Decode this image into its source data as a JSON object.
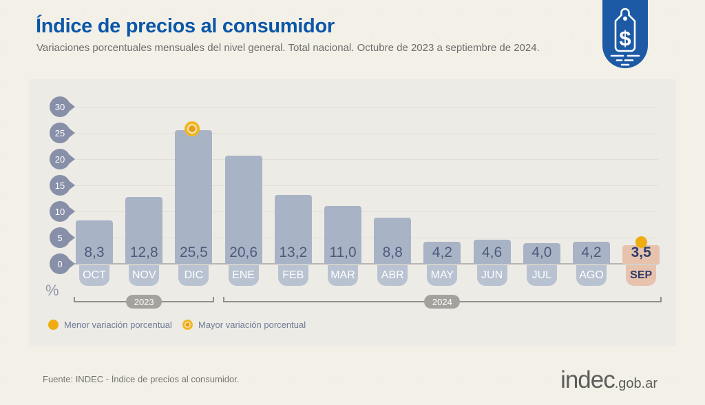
{
  "header": {
    "title": "Índice de precios al consumidor",
    "subtitle": "Variaciones porcentuales mensuales del nivel general. Total nacional. Octubre de 2023 a septiembre de 2024.",
    "badge_dollar": "$"
  },
  "chart_data": {
    "type": "bar",
    "title": "Índice de precios al consumidor",
    "subtitle": "Variaciones porcentuales mensuales del nivel general. Total nacional. Octubre de 2023 a septiembre de 2024.",
    "categories": [
      "OCT",
      "NOV",
      "DIC",
      "ENE",
      "FEB",
      "MAR",
      "ABR",
      "MAY",
      "JUN",
      "JUL",
      "AGO",
      "SEP"
    ],
    "values": [
      8.3,
      12.8,
      25.5,
      20.6,
      13.2,
      11.0,
      8.8,
      4.2,
      4.6,
      4.0,
      4.2,
      3.5
    ],
    "value_labels": [
      "8,3",
      "12,8",
      "25,5",
      "20,6",
      "13,2",
      "11,0",
      "8,8",
      "4,2",
      "4,6",
      "4,0",
      "4,2",
      "3,5"
    ],
    "ylabel": "%",
    "ylim": [
      0,
      30
    ],
    "yticks": [
      0,
      5,
      10,
      15,
      20,
      25,
      30
    ],
    "grid": true,
    "legend_position": "bottom-left",
    "max_marker_category": "DIC",
    "min_marker_category": "SEP",
    "highlight_category": "SEP",
    "year_groups": [
      {
        "label": "2023",
        "from": "OCT",
        "to": "DIC"
      },
      {
        "label": "2024",
        "from": "ENE",
        "to": "SEP"
      }
    ]
  },
  "legend": {
    "items": [
      {
        "icon": "solid-dot",
        "label": "Menor variación porcentual"
      },
      {
        "icon": "ring-dot",
        "label": "Mayor variación porcentual"
      }
    ]
  },
  "footer": {
    "source": "Fuente: INDEC - Índice de precios al consumidor.",
    "logo_main": "indec",
    "logo_suffix": ".gob.ar"
  },
  "colors": {
    "title_blue": "#0b57a8",
    "bar_blue": "#a9b3c6",
    "month_badge_blue": "#b8c2d1",
    "highlight_salmon": "#e7c3ae",
    "value_text": "#4e5a7b",
    "highlight_text": "#2e3e6b",
    "axis_badge": "#8790a8",
    "marker_yellow": "#f0ad10",
    "marker_ring": "#f2b71f",
    "header_badge_blue": "#1d5aa5",
    "page_background": "#f3f0e8",
    "panel_background": "#edebe6"
  }
}
